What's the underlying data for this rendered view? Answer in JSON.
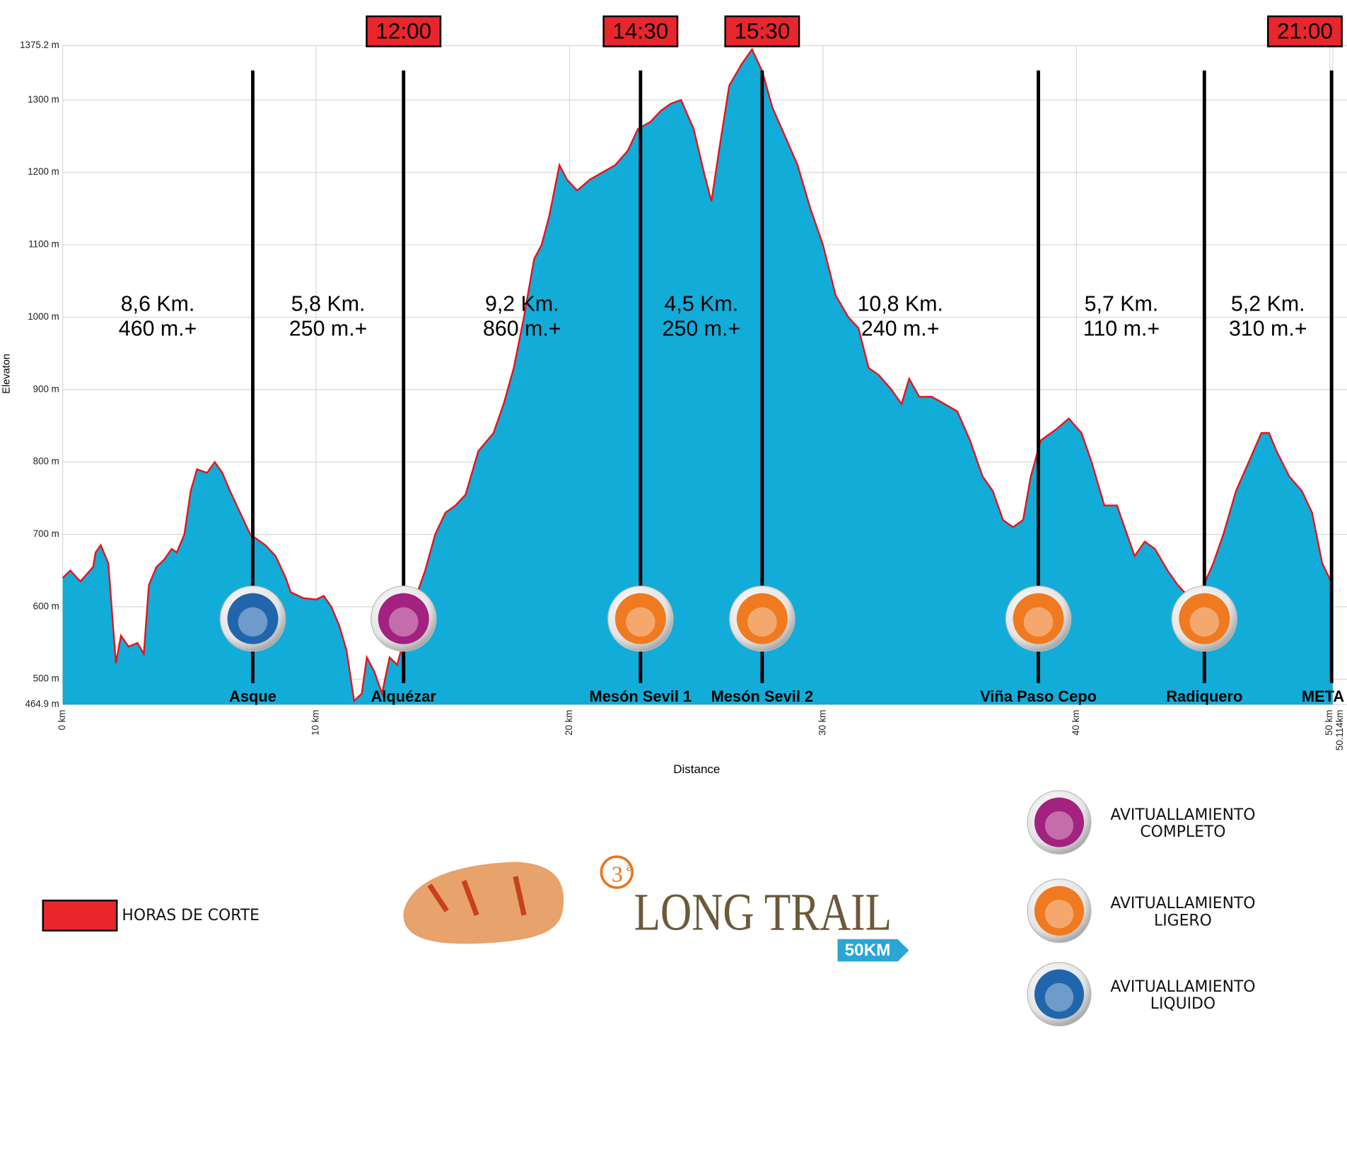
{
  "chart_data": {
    "type": "area",
    "xlabel": "Distance",
    "ylabel": "Elevaton",
    "xlim": [
      0,
      50.114
    ],
    "ylim": [
      464.9,
      1375.2
    ],
    "xticks": [
      {
        "value": 0,
        "label": "0 km"
      },
      {
        "value": 10,
        "label": "10 km"
      },
      {
        "value": 20,
        "label": "20 km"
      },
      {
        "value": 30,
        "label": "30 km"
      },
      {
        "value": 40,
        "label": "40 km"
      },
      {
        "value": 50,
        "label": "50 km"
      },
      {
        "value": 50.114,
        "label": "50.114km"
      }
    ],
    "yticks": [
      {
        "value": 464.9,
        "label": "464.9 m"
      },
      {
        "value": 500,
        "label": "500 m"
      },
      {
        "value": 600,
        "label": "600 m"
      },
      {
        "value": 700,
        "label": "700 m"
      },
      {
        "value": 800,
        "label": "800 m"
      },
      {
        "value": 900,
        "label": "900 m"
      },
      {
        "value": 1000,
        "label": "1000 m"
      },
      {
        "value": 1100,
        "label": "1100 m"
      },
      {
        "value": 1200,
        "label": "1200 m"
      },
      {
        "value": 1300,
        "label": "1300 m"
      },
      {
        "value": 1375.2,
        "label": "1375.2 m"
      }
    ],
    "grid": true,
    "color": "#12acd8",
    "line_color": "#e8141c",
    "x": [
      0,
      0.3,
      0.7,
      1.2,
      1.3,
      1.5,
      1.8,
      2.1,
      2.3,
      2.6,
      2.95,
      3.2,
      3.4,
      3.7,
      4.0,
      4.3,
      4.5,
      4.8,
      5.05,
      5.3,
      5.7,
      6.0,
      6.3,
      6.6,
      7.0,
      7.4,
      8.0,
      8.4,
      8.8,
      9.0,
      9.5,
      10.0,
      10.3,
      10.6,
      10.9,
      11.2,
      11.5,
      11.8,
      12.0,
      12.3,
      12.6,
      12.9,
      13.2,
      13.5,
      13.9,
      14.3,
      14.7,
      15.1,
      15.5,
      15.9,
      16.4,
      17.0,
      17.4,
      17.8,
      18.2,
      18.6,
      18.9,
      19.2,
      19.6,
      19.9,
      20.3,
      20.8,
      21.3,
      21.8,
      22.3,
      22.7,
      23.2,
      23.6,
      24.0,
      24.4,
      24.9,
      25.3,
      25.6,
      25.9,
      26.3,
      26.8,
      27.2,
      27.6,
      28.0,
      28.5,
      29.0,
      29.5,
      30.0,
      30.5,
      31.0,
      31.4,
      31.8,
      32.2,
      32.7,
      33.1,
      33.4,
      33.8,
      34.3,
      34.8,
      35.3,
      35.8,
      36.3,
      36.7,
      37.1,
      37.5,
      37.9,
      38.2,
      38.6,
      39.2,
      39.7,
      40.2,
      40.6,
      41.1,
      41.6,
      41.9,
      42.3,
      42.7,
      43.1,
      43.6,
      44.0,
      44.4,
      44.9,
      45.4,
      45.8,
      46.3,
      46.8,
      47.3,
      47.6,
      47.9,
      48.4,
      48.9,
      49.3,
      49.7,
      50.114
    ],
    "values": [
      640,
      650,
      635,
      655,
      675,
      685,
      660,
      522,
      560,
      545,
      550,
      535,
      630,
      655,
      665,
      680,
      675,
      700,
      760,
      790,
      785,
      800,
      785,
      760,
      730,
      700,
      685,
      670,
      640,
      620,
      612,
      610,
      615,
      600,
      575,
      540,
      470,
      480,
      530,
      510,
      480,
      530,
      520,
      560,
      610,
      650,
      700,
      730,
      740,
      755,
      815,
      840,
      880,
      930,
      1000,
      1080,
      1100,
      1140,
      1210,
      1190,
      1175,
      1190,
      1200,
      1210,
      1230,
      1260,
      1270,
      1285,
      1295,
      1300,
      1260,
      1200,
      1160,
      1230,
      1320,
      1350,
      1370,
      1340,
      1290,
      1250,
      1210,
      1150,
      1100,
      1030,
      1000,
      985,
      930,
      920,
      900,
      880,
      915,
      890,
      890,
      880,
      870,
      830,
      780,
      760,
      720,
      710,
      720,
      780,
      830,
      845,
      860,
      840,
      800,
      740,
      740,
      710,
      670,
      690,
      680,
      650,
      630,
      615,
      620,
      660,
      700,
      760,
      800,
      840,
      840,
      815,
      780,
      760,
      730,
      660,
      630
    ],
    "stations": [
      {
        "name": "Asque",
        "km": 7.5,
        "aid": 2
      },
      {
        "name": "Alquézar",
        "km": 13.45,
        "aid": 0,
        "cutoff": "12:00"
      },
      {
        "name": "Mesón Sevil 1",
        "km": 22.8,
        "aid": 1,
        "cutoff": "14:30"
      },
      {
        "name": "Mesón Sevil 2",
        "km": 27.6,
        "aid": 1,
        "cutoff": "15:30"
      },
      {
        "name": "Viña Paso Cepo",
        "km": 38.5,
        "aid": 1
      },
      {
        "name": "Radiquero",
        "km": 45.05,
        "aid": 1
      },
      {
        "name": "META",
        "km": 50.07,
        "cutoff": "21:00"
      }
    ],
    "segments": [
      {
        "distance": "8,6 Km.",
        "gain": "460 m.+"
      },
      {
        "distance": "5,8 Km.",
        "gain": "250 m.+"
      },
      {
        "distance": "9,2 Km.",
        "gain": "860 m.+"
      },
      {
        "distance": "4,5 Km.",
        "gain": "250 m.+"
      },
      {
        "distance": "10,8 Km.",
        "gain": "240 m.+"
      },
      {
        "distance": "5,7 Km.",
        "gain": "110 m.+"
      },
      {
        "distance": "5,2 Km.",
        "gain": "310 m.+"
      }
    ],
    "cutoff_legend": {
      "label": "HORAS DE CORTE",
      "color": "#e8262c"
    },
    "aid_legend": [
      {
        "lines": [
          "AVITUALLAMIENTO",
          "COMPLETO"
        ],
        "color": "#a3217f"
      },
      {
        "lines": [
          "AVITUALLAMIENTO",
          "LIGERO"
        ],
        "color": "#f07a20"
      },
      {
        "lines": [
          "AVITUALLAMIENTO",
          "LIQUIDO"
        ],
        "color": "#2166ad"
      }
    ],
    "logo": {
      "edition": "3",
      "edition_suffix": "a",
      "title": "LONG TRAIL",
      "badge": "50KM"
    }
  }
}
